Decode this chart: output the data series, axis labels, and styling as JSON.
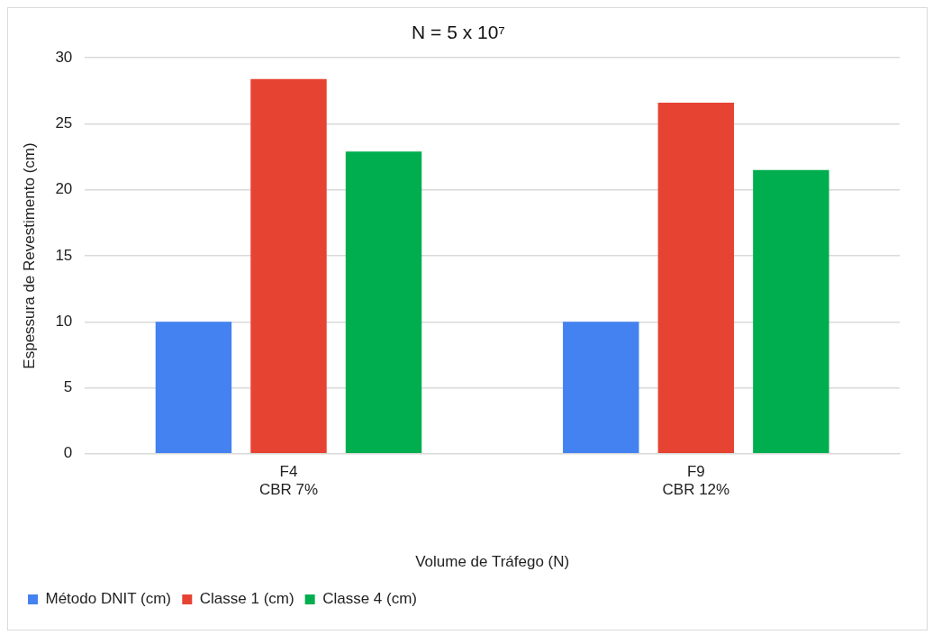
{
  "chart_data": {
    "type": "bar",
    "title": "N = 5 x 10⁷",
    "xlabel": "Volume de Tráfego (N)",
    "ylabel": "Espessura de Revestimento (cm)",
    "categories": [
      "F4\nCBR 7%",
      "F9\nCBR 12%"
    ],
    "series": [
      {
        "name": "Método DNIT (cm)",
        "color": "#4382f0",
        "values": [
          10,
          10
        ]
      },
      {
        "name": "Classe 1 (cm)",
        "color": "#e74333",
        "values": [
          28.4,
          26.6
        ]
      },
      {
        "name": "Classe 4 (cm)",
        "color": "#00ae4f",
        "values": [
          22.9,
          21.5
        ]
      }
    ],
    "ylim": [
      0,
      30
    ],
    "yticks": [
      0,
      5,
      10,
      15,
      20,
      25,
      30
    ],
    "grid": "y",
    "legend": "bottom"
  }
}
